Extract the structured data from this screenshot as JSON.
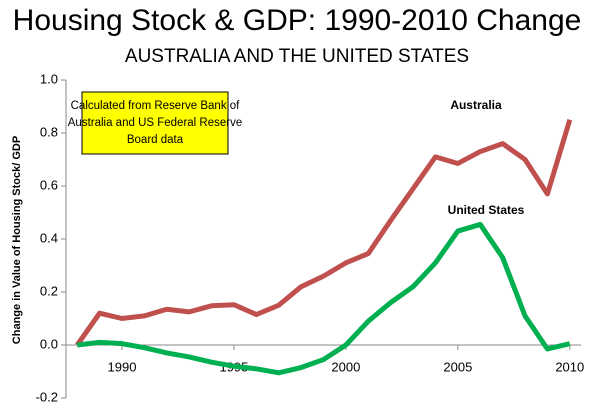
{
  "chart_data": {
    "type": "line",
    "title": "Housing Stock & GDP: 1990-2010 Change",
    "subtitle": "AUSTRALIA  AND THE UNITED STATES",
    "y_label": "Change in Value of Housing Stock/ GDP",
    "annotation": [
      "Calculated from Reserve Bank  of",
      "Australia and US Federal Reserve",
      "Board data"
    ],
    "x": [
      1988,
      1989,
      1990,
      1991,
      1992,
      1993,
      1994,
      1995,
      1996,
      1997,
      1998,
      1999,
      2000,
      2001,
      2002,
      2003,
      2004,
      2005,
      2006,
      2007,
      2008,
      2009,
      2010
    ],
    "series": [
      {
        "name": "Australia",
        "color": "#c0504d",
        "values": [
          0.0,
          0.12,
          0.1,
          0.11,
          0.135,
          0.125,
          0.148,
          0.152,
          0.115,
          0.15,
          0.22,
          0.26,
          0.31,
          0.345,
          0.47,
          0.59,
          0.71,
          0.685,
          0.73,
          0.76,
          0.7,
          0.57,
          0.85
        ]
      },
      {
        "name": "United States",
        "color": "#00b050",
        "values": [
          0.0,
          0.01,
          0.005,
          -0.01,
          -0.03,
          -0.045,
          -0.065,
          -0.08,
          -0.09,
          -0.105,
          -0.085,
          -0.055,
          0.0,
          0.09,
          0.16,
          0.22,
          0.31,
          0.43,
          0.455,
          0.33,
          0.11,
          -0.015,
          0.005
        ]
      }
    ],
    "xlim": [
      1987.5,
      2010.5
    ],
    "xticks": [
      1990,
      1995,
      2000,
      2005,
      2010
    ],
    "ylim": [
      -0.2,
      1.0
    ],
    "yticks": [
      -0.2,
      {
        "value": 0,
        "label": "0.0"
      },
      0.2,
      0.4,
      0.6,
      0.8,
      {
        "value": 1,
        "label": "1.0"
      }
    ]
  }
}
